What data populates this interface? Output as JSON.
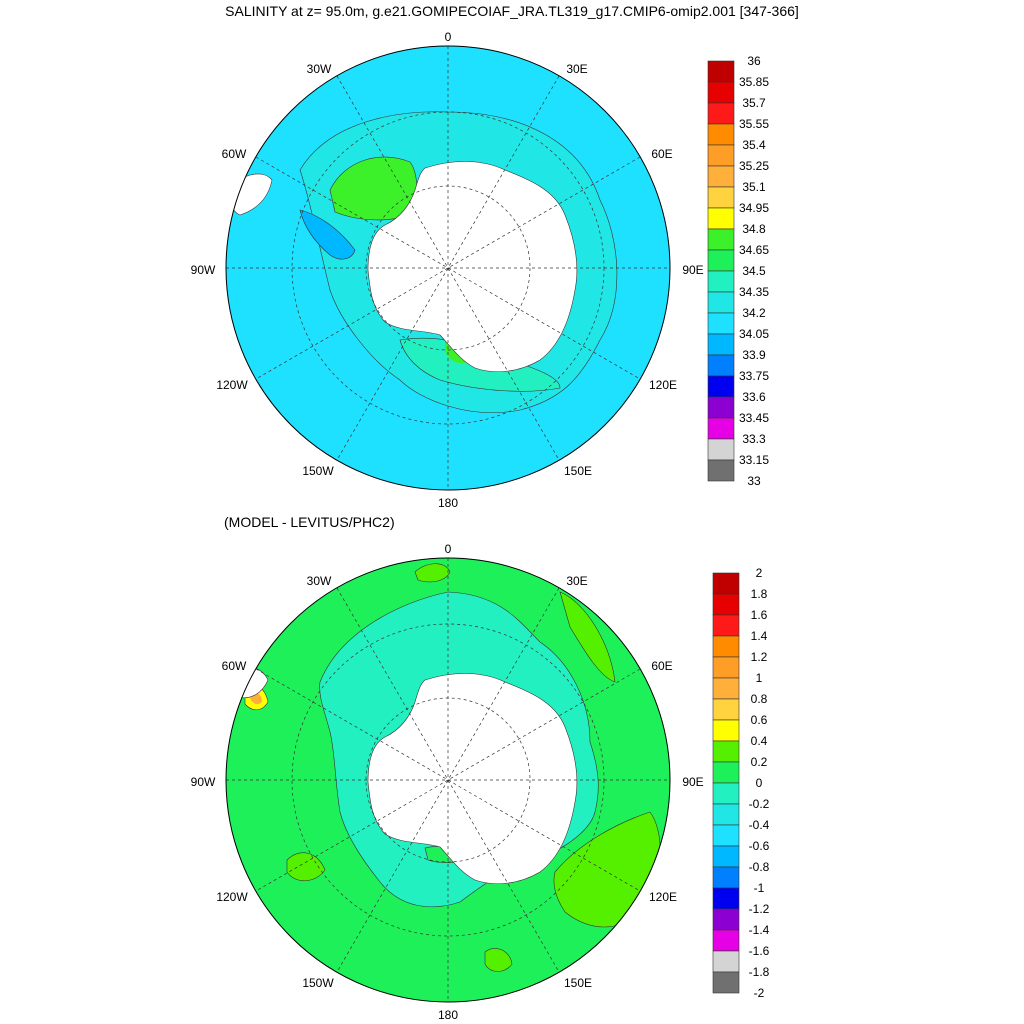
{
  "title": "SALINITY at z=  95.0m, g.e21.GOMIPECOIAF_JRA.TL319_g17.CMIP6-omip2.001 [347-366]",
  "subtitle": "(MODEL - LEVITUS/PHC2)",
  "longitude_labels": {
    "lon_0": "0",
    "lon_30e": "30E",
    "lon_60e": "60E",
    "lon_90e": "90E",
    "lon_120e": "120E",
    "lon_150e": "150E",
    "lon_180": "180",
    "lon_150w": "150W",
    "lon_120w": "120W",
    "lon_90w": "90W",
    "lon_60w": "60W",
    "lon_30w": "30W"
  },
  "top_colorbar": {
    "labels": [
      "36",
      "35.85",
      "35.7",
      "35.55",
      "35.4",
      "35.25",
      "35.1",
      "34.95",
      "34.8",
      "34.65",
      "34.5",
      "34.35",
      "34.2",
      "34.05",
      "33.9",
      "33.75",
      "33.6",
      "33.45",
      "33.3",
      "33.15",
      "33"
    ],
    "colors": [
      "#c00000",
      "#e60000",
      "#ff1a1a",
      "#ff8c00",
      "#ff9e26",
      "#ffb03b",
      "#ffd23f",
      "#ffff00",
      "#3cf02a",
      "#1ef05a",
      "#22f0c0",
      "#20e6e6",
      "#1ee0ff",
      "#00b8ff",
      "#0080ff",
      "#0000f0",
      "#8c00d2",
      "#e600e6",
      "#d4d4d4",
      "#707070"
    ]
  },
  "bottom_colorbar": {
    "labels": [
      "2",
      "1.8",
      "1.6",
      "1.4",
      "1.2",
      "1",
      "0.8",
      "0.6",
      "0.4",
      "0.2",
      "0",
      "-0.2",
      "-0.4",
      "-0.6",
      "-0.8",
      "-1",
      "-1.2",
      "-1.4",
      "-1.6",
      "-1.8",
      "-2"
    ],
    "colors": [
      "#c00000",
      "#e60000",
      "#ff1a1a",
      "#ff8c00",
      "#ff9e26",
      "#ffb03b",
      "#ffd23f",
      "#ffff00",
      "#55f000",
      "#1ef05a",
      "#22f0c0",
      "#20e6e6",
      "#1ee0ff",
      "#00b8ff",
      "#0080ff",
      "#0000f0",
      "#8c00d2",
      "#e600e6",
      "#d4d4d4",
      "#707070"
    ]
  }
}
